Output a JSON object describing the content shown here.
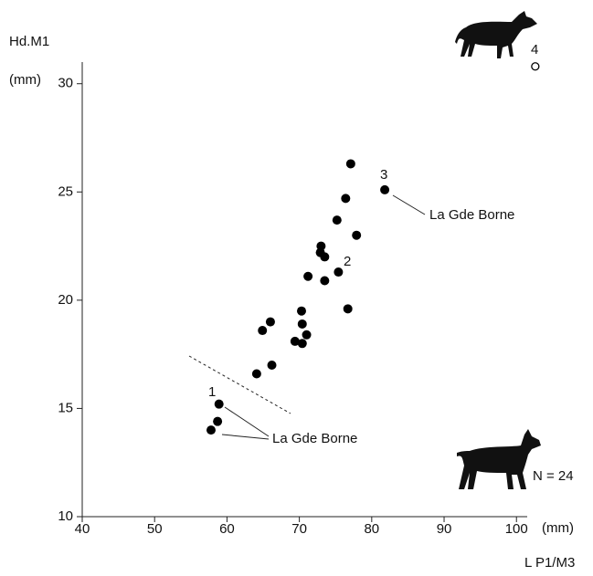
{
  "chart_data": {
    "type": "scatter",
    "y_label": "Hd.M1",
    "y_unit": "(mm)",
    "x_label": "L P1/M3",
    "x_unit": "(mm)",
    "xlim": [
      40,
      103
    ],
    "ylim": [
      10,
      31
    ],
    "xticks": [
      40,
      50,
      60,
      70,
      80,
      90,
      100
    ],
    "yticks": [
      10,
      15,
      20,
      25,
      30
    ],
    "series": [
      {
        "color": "#000000",
        "marker": "filled",
        "x": [
          77.1,
          81.8,
          76.4,
          75.2,
          77.9,
          73.0,
          72.9,
          73.5,
          71.2,
          75.4,
          73.5,
          70.3,
          76.7,
          66.0,
          64.9,
          70.4,
          71.0,
          69.4,
          70.4,
          66.2,
          64.1,
          58.9,
          58.7,
          57.8
        ],
        "values": [
          26.3,
          25.1,
          24.7,
          23.7,
          23.0,
          22.5,
          22.2,
          22.0,
          21.1,
          21.3,
          20.9,
          19.5,
          19.6,
          19.0,
          18.6,
          18.9,
          18.4,
          18.1,
          18.0,
          17.0,
          16.6,
          15.2,
          14.4,
          14.0
        ]
      },
      {
        "color": "#000000",
        "marker": "open",
        "x": [
          102.6
        ],
        "values": [
          30.8
        ]
      }
    ],
    "point_labels": [
      "1",
      "2",
      "3",
      "4"
    ],
    "annotations": [
      "La Gde Borne",
      "La Gde Borne"
    ],
    "n_label": "N = 24"
  }
}
